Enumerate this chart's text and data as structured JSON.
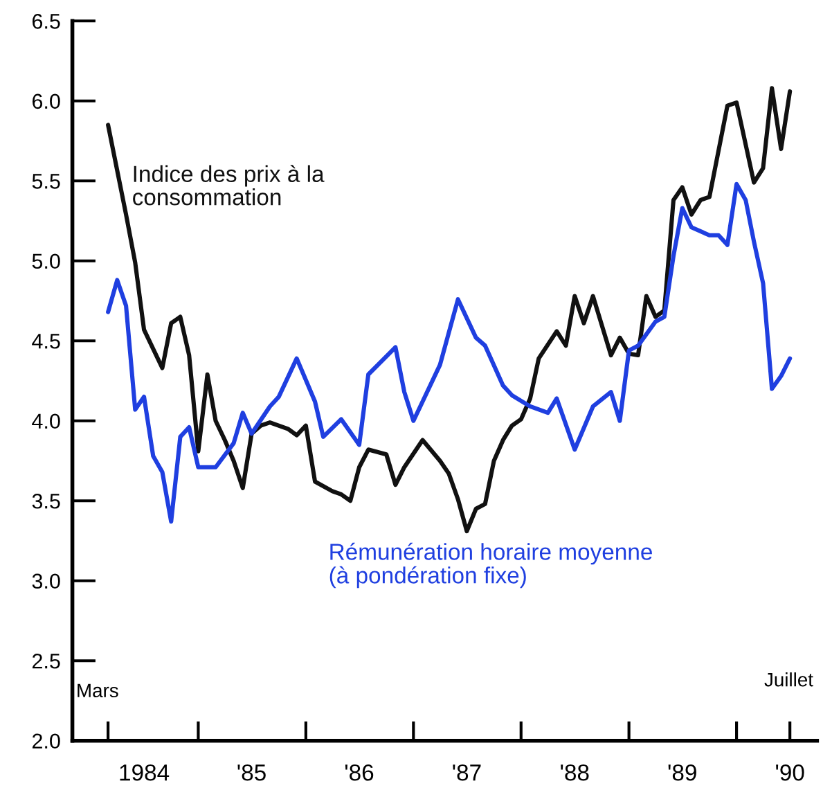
{
  "chart_data": {
    "type": "line",
    "xlim": [
      "1983-11",
      "1990-10"
    ],
    "ylim": [
      2.0,
      6.5
    ],
    "yticks": [
      {
        "value": 2.0,
        "label": "2.0"
      },
      {
        "value": 2.5,
        "label": "2.5"
      },
      {
        "value": 3.0,
        "label": "3.0"
      },
      {
        "value": 3.5,
        "label": "3.5"
      },
      {
        "value": 4.0,
        "label": "4.0"
      },
      {
        "value": 4.5,
        "label": "4.5"
      },
      {
        "value": 5.0,
        "label": "5.0"
      },
      {
        "value": 5.5,
        "label": "5.5"
      },
      {
        "value": 6.0,
        "label": "6.0"
      },
      {
        "value": 6.5,
        "label": "6.5"
      }
    ],
    "xticks": [
      {
        "value": "1984-03",
        "label": null
      },
      {
        "value": "1985-01",
        "label": null
      },
      {
        "value": "1986-01",
        "label": null
      },
      {
        "value": "1987-01",
        "label": null
      },
      {
        "value": "1988-01",
        "label": null
      },
      {
        "value": "1989-01",
        "label": null
      },
      {
        "value": "1990-01",
        "label": null
      },
      {
        "value": "1990-07",
        "label": null
      },
      {
        "value": "1984-07",
        "label": "1984"
      },
      {
        "value": "1985-07",
        "label": "'85"
      },
      {
        "value": "1986-07",
        "label": "'86"
      },
      {
        "value": "1987-07",
        "label": "'87"
      },
      {
        "value": "1988-07",
        "label": "'88"
      },
      {
        "value": "1989-07",
        "label": "'89"
      },
      {
        "value": "1990-07",
        "label": "'90"
      }
    ],
    "annotations": [
      "Mars",
      "Juillet"
    ],
    "grid": false,
    "legend": false,
    "marker": "none",
    "line_style": "solid",
    "series": [
      {
        "name": "Indice des prix à la\nconsommation",
        "color": "#111111",
        "x": [
          "1984-03",
          "1984-05",
          "1984-06",
          "1984-07",
          "1984-09",
          "1984-10",
          "1984-11",
          "1984-12",
          "1985-01",
          "1985-02",
          "1985-03",
          "1985-04",
          "1985-05",
          "1985-06",
          "1985-07",
          "1985-08",
          "1985-09",
          "1985-11",
          "1985-12",
          "1986-01",
          "1986-02",
          "1986-04",
          "1986-05",
          "1986-06",
          "1986-07",
          "1986-08",
          "1986-10",
          "1986-11",
          "1986-12",
          "1987-02",
          "1987-04",
          "1987-05",
          "1987-06",
          "1987-07",
          "1987-08",
          "1987-09",
          "1987-10",
          "1987-11",
          "1987-12",
          "1988-01",
          "1988-02",
          "1988-03",
          "1988-05",
          "1988-06",
          "1988-07",
          "1988-08",
          "1988-09",
          "1988-11",
          "1988-12",
          "1989-01",
          "1989-02",
          "1989-03",
          "1989-04",
          "1989-05",
          "1989-06",
          "1989-07",
          "1989-08",
          "1989-09",
          "1989-10",
          "1989-12",
          "1990-01",
          "1990-03",
          "1990-04",
          "1990-05",
          "1990-06",
          "1990-07"
        ],
        "values": [
          5.85,
          5.29,
          4.99,
          4.57,
          4.33,
          4.61,
          4.65,
          4.41,
          3.81,
          4.29,
          4.0,
          3.88,
          3.75,
          3.58,
          3.92,
          3.97,
          3.99,
          3.95,
          3.91,
          3.97,
          3.62,
          3.56,
          3.54,
          3.5,
          3.71,
          3.82,
          3.79,
          3.6,
          3.71,
          3.88,
          3.75,
          3.67,
          3.51,
          3.31,
          3.45,
          3.48,
          3.75,
          3.88,
          3.97,
          4.01,
          4.14,
          4.39,
          4.56,
          4.47,
          4.78,
          4.61,
          4.78,
          4.41,
          4.52,
          4.42,
          4.41,
          4.78,
          4.65,
          4.69,
          5.38,
          5.46,
          5.29,
          5.38,
          5.4,
          5.97,
          5.99,
          5.49,
          5.58,
          6.08,
          5.7,
          6.06
        ]
      },
      {
        "name": "Rémunération horaire moyenne\n(à pondération fixe)",
        "color": "#1f3fe0",
        "x": [
          "1984-03",
          "1984-04",
          "1984-05",
          "1984-06",
          "1984-07",
          "1984-08",
          "1984-09",
          "1984-10",
          "1984-11",
          "1984-12",
          "1985-01",
          "1985-03",
          "1985-05",
          "1985-06",
          "1985-07",
          "1985-09",
          "1985-10",
          "1985-12",
          "1986-02",
          "1986-03",
          "1986-05",
          "1986-07",
          "1986-08",
          "1986-11",
          "1986-12",
          "1987-01",
          "1987-04",
          "1987-06",
          "1987-08",
          "1987-09",
          "1987-11",
          "1987-12",
          "1988-02",
          "1988-04",
          "1988-05",
          "1988-07",
          "1988-09",
          "1988-11",
          "1988-12",
          "1989-01",
          "1989-02",
          "1989-04",
          "1989-05",
          "1989-06",
          "1989-07",
          "1989-08",
          "1989-10",
          "1989-11",
          "1989-12",
          "1990-01",
          "1990-02",
          "1990-03",
          "1990-04",
          "1990-05",
          "1990-06",
          "1990-07"
        ],
        "values": [
          4.68,
          4.88,
          4.72,
          4.07,
          4.15,
          3.78,
          3.68,
          3.37,
          3.9,
          3.96,
          3.71,
          3.71,
          3.86,
          4.05,
          3.92,
          4.09,
          4.15,
          4.39,
          4.12,
          3.9,
          4.01,
          3.85,
          4.29,
          4.46,
          4.18,
          4.0,
          4.35,
          4.76,
          4.52,
          4.47,
          4.22,
          4.16,
          4.09,
          4.05,
          4.14,
          3.82,
          4.09,
          4.18,
          4.0,
          4.44,
          4.47,
          4.62,
          4.65,
          5.03,
          5.33,
          5.21,
          5.16,
          5.16,
          5.1,
          5.48,
          5.38,
          5.12,
          4.86,
          4.2,
          4.28,
          4.39
        ]
      }
    ]
  }
}
